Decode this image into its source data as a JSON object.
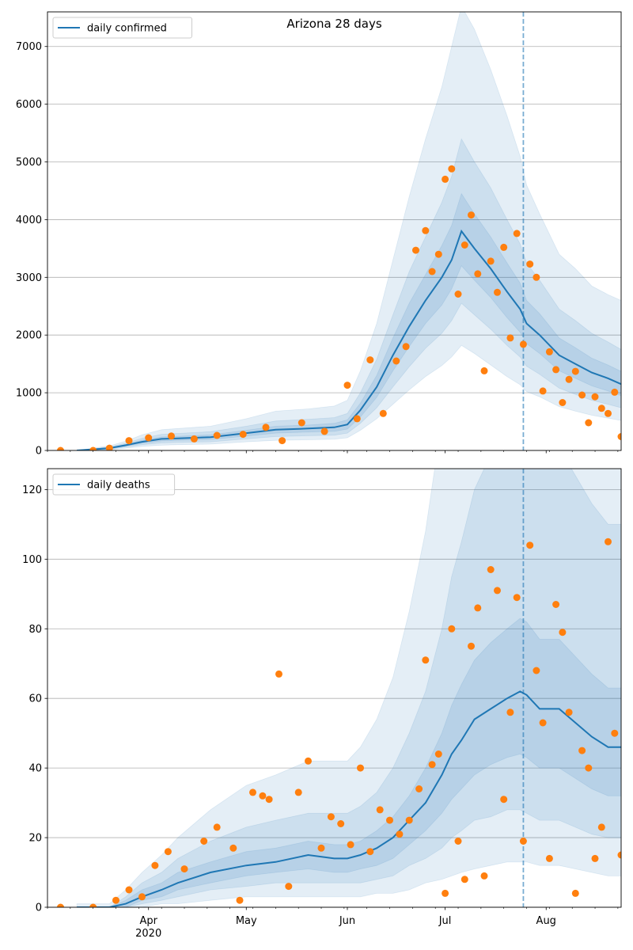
{
  "chart_data": [
    {
      "type": "line",
      "title": "Arizona 28 days",
      "legend": {
        "placement": "top-left",
        "entries": [
          "daily confirmed"
        ]
      },
      "grid": "y",
      "ylim": [
        0,
        7600
      ],
      "yticks": [
        0,
        1000,
        2000,
        3000,
        4000,
        5000,
        6000,
        7000
      ],
      "xlim": [
        "2020-03-01",
        "2020-08-24"
      ],
      "forecast_start": "2020-07-25",
      "x": [
        "2020-03-10",
        "2020-03-20",
        "2020-03-25",
        "2020-03-30",
        "2020-04-05",
        "2020-04-10",
        "2020-04-20",
        "2020-05-01",
        "2020-05-10",
        "2020-05-20",
        "2020-05-28",
        "2020-06-01",
        "2020-06-05",
        "2020-06-10",
        "2020-06-15",
        "2020-06-20",
        "2020-06-25",
        "2020-06-30",
        "2020-07-03",
        "2020-07-06",
        "2020-07-10",
        "2020-07-15",
        "2020-07-20",
        "2020-07-24",
        "2020-07-26",
        "2020-07-30",
        "2020-08-05",
        "2020-08-10",
        "2020-08-15",
        "2020-08-20",
        "2020-08-24"
      ],
      "series": [
        {
          "name": "daily confirmed",
          "kind": "line",
          "color": "#1f77b4",
          "values": [
            0,
            40,
            90,
            150,
            200,
            210,
            230,
            300,
            360,
            380,
            400,
            450,
            700,
            1100,
            1650,
            2150,
            2600,
            3000,
            3300,
            3800,
            3500,
            3150,
            2750,
            2450,
            2200,
            2000,
            1650,
            1500,
            1350,
            1250,
            1150
          ]
        },
        {
          "kind": "band",
          "color": "#1f77b4",
          "level": "inner",
          "lower": [
            0,
            30,
            75,
            125,
            165,
            175,
            190,
            250,
            300,
            320,
            330,
            370,
            580,
            920,
            1380,
            1800,
            2200,
            2520,
            2800,
            3200,
            2950,
            2650,
            2300,
            2050,
            1850,
            1680,
            1380,
            1250,
            1120,
            1030,
            950
          ],
          "upper": [
            0,
            50,
            105,
            175,
            235,
            245,
            270,
            350,
            420,
            440,
            470,
            530,
            820,
            1300,
            1950,
            2550,
            3050,
            3550,
            3900,
            4450,
            4100,
            3700,
            3250,
            2900,
            2600,
            2370,
            1950,
            1780,
            1600,
            1480,
            1370
          ]
        },
        {
          "kind": "band",
          "color": "#1f77b4",
          "level": "middle",
          "lower": [
            0,
            20,
            60,
            100,
            130,
            140,
            150,
            200,
            240,
            255,
            265,
            300,
            470,
            740,
            1100,
            1450,
            1770,
            2030,
            2250,
            2550,
            2350,
            2100,
            1820,
            1620,
            1460,
            1320,
            1080,
            970,
            870,
            800,
            740
          ],
          "upper": [
            0,
            60,
            125,
            210,
            280,
            295,
            325,
            420,
            510,
            540,
            570,
            640,
            1000,
            1580,
            2350,
            3100,
            3700,
            4300,
            4750,
            5400,
            5000,
            4550,
            4000,
            3580,
            3250,
            2950,
            2450,
            2250,
            2030,
            1880,
            1750
          ]
        },
        {
          "kind": "band",
          "color": "#1f77b4",
          "level": "outer",
          "lower": [
            0,
            10,
            40,
            70,
            90,
            100,
            110,
            150,
            175,
            185,
            195,
            220,
            350,
            550,
            800,
            1050,
            1280,
            1470,
            1620,
            1820,
            1680,
            1480,
            1280,
            1140,
            1020,
            930,
            760,
            680,
            610,
            560,
            520
          ],
          "upper": [
            0,
            80,
            160,
            270,
            360,
            380,
            420,
            550,
            680,
            720,
            770,
            870,
            1380,
            2200,
            3300,
            4400,
            5400,
            6300,
            7000,
            7700,
            7300,
            6600,
            5800,
            5100,
            4600,
            4100,
            3400,
            3150,
            2850,
            2700,
            2600
          ]
        },
        {
          "name": "observed",
          "kind": "scatter",
          "color": "#ff7f0e",
          "x": [
            "2020-03-05",
            "2020-03-15",
            "2020-03-20",
            "2020-03-26",
            "2020-04-01",
            "2020-04-08",
            "2020-04-15",
            "2020-04-22",
            "2020-04-30",
            "2020-05-07",
            "2020-05-12",
            "2020-05-18",
            "2020-05-25",
            "2020-06-01",
            "2020-06-04",
            "2020-06-08",
            "2020-06-12",
            "2020-06-16",
            "2020-06-19",
            "2020-06-22",
            "2020-06-25",
            "2020-06-27",
            "2020-06-29",
            "2020-07-01",
            "2020-07-03",
            "2020-07-05",
            "2020-07-07",
            "2020-07-09",
            "2020-07-11",
            "2020-07-13",
            "2020-07-15",
            "2020-07-17",
            "2020-07-19",
            "2020-07-21",
            "2020-07-23",
            "2020-07-25",
            "2020-07-27",
            "2020-07-29",
            "2020-07-31",
            "2020-08-02",
            "2020-08-04",
            "2020-08-06",
            "2020-08-08",
            "2020-08-10",
            "2020-08-12",
            "2020-08-14",
            "2020-08-16",
            "2020-08-18",
            "2020-08-20",
            "2020-08-22",
            "2020-08-24"
          ],
          "y": [
            0,
            0,
            40,
            170,
            220,
            250,
            200,
            260,
            280,
            400,
            170,
            480,
            330,
            1130,
            550,
            1570,
            640,
            1550,
            1800,
            3470,
            3810,
            3100,
            3400,
            4700,
            4880,
            2710,
            3560,
            4080,
            3060,
            1380,
            3280,
            2740,
            3520,
            1950,
            3760,
            1840,
            3230,
            3000,
            1030,
            1710,
            1400,
            830,
            1230,
            1370,
            960,
            480,
            930,
            730,
            640,
            1010,
            240
          ]
        }
      ]
    },
    {
      "type": "line",
      "title": "",
      "legend": {
        "placement": "top-left",
        "entries": [
          "daily deaths"
        ]
      },
      "grid": "y",
      "ylim": [
        0,
        126
      ],
      "yticks": [
        0,
        20,
        40,
        60,
        80,
        100,
        120
      ],
      "xlim": [
        "2020-03-01",
        "2020-08-24"
      ],
      "forecast_start": "2020-07-25",
      "xticks": [
        {
          "date": "2020-04-01",
          "label": "Apr",
          "sublabel": "2020"
        },
        {
          "date": "2020-05-01",
          "label": "May"
        },
        {
          "date": "2020-06-01",
          "label": "Jun"
        },
        {
          "date": "2020-07-01",
          "label": "Jul"
        },
        {
          "date": "2020-08-01",
          "label": "Aug"
        }
      ],
      "x": [
        "2020-03-10",
        "2020-03-20",
        "2020-03-25",
        "2020-03-30",
        "2020-04-05",
        "2020-04-10",
        "2020-04-20",
        "2020-05-01",
        "2020-05-10",
        "2020-05-20",
        "2020-05-28",
        "2020-06-01",
        "2020-06-05",
        "2020-06-10",
        "2020-06-15",
        "2020-06-20",
        "2020-06-25",
        "2020-06-30",
        "2020-07-03",
        "2020-07-06",
        "2020-07-10",
        "2020-07-15",
        "2020-07-20",
        "2020-07-24",
        "2020-07-26",
        "2020-07-30",
        "2020-08-05",
        "2020-08-10",
        "2020-08-15",
        "2020-08-20",
        "2020-08-24"
      ],
      "series": [
        {
          "name": "daily deaths",
          "kind": "line",
          "color": "#1f77b4",
          "values": [
            0,
            0,
            1,
            3,
            5,
            7,
            10,
            12,
            13,
            15,
            14,
            14,
            15,
            17,
            20,
            25,
            30,
            38,
            44,
            48,
            54,
            57,
            60,
            62,
            61,
            57,
            57,
            53,
            49,
            46,
            46
          ]
        },
        {
          "kind": "band",
          "color": "#1f77b4",
          "level": "inner",
          "lower": [
            0,
            0,
            0,
            2,
            3,
            5,
            7,
            9,
            10,
            11,
            10,
            10,
            11,
            12,
            14,
            18,
            22,
            27,
            31,
            34,
            38,
            41,
            43,
            44,
            43,
            40,
            40,
            37,
            34,
            32,
            32
          ],
          "upper": [
            0,
            0,
            2,
            5,
            7,
            10,
            13,
            16,
            17,
            19,
            18,
            18,
            19,
            22,
            26,
            32,
            40,
            50,
            58,
            64,
            71,
            76,
            80,
            83,
            82,
            77,
            77,
            72,
            67,
            63,
            63
          ]
        },
        {
          "kind": "band",
          "color": "#1f77b4",
          "level": "middle",
          "lower": [
            0,
            0,
            0,
            1,
            2,
            3,
            5,
            6,
            7,
            7,
            7,
            7,
            7,
            8,
            9,
            12,
            14,
            17,
            20,
            22,
            25,
            26,
            28,
            28,
            27,
            25,
            25,
            23,
            21,
            20,
            20
          ],
          "upper": [
            0,
            0,
            3,
            7,
            10,
            14,
            19,
            23,
            25,
            27,
            27,
            27,
            29,
            33,
            40,
            50,
            62,
            80,
            95,
            105,
            120,
            130,
            138,
            142,
            140,
            132,
            132,
            124,
            116,
            110,
            110
          ]
        },
        {
          "kind": "band",
          "color": "#1f77b4",
          "level": "outer",
          "lower": [
            0,
            0,
            0,
            0,
            1,
            1,
            2,
            3,
            3,
            3,
            3,
            3,
            3,
            4,
            4,
            5,
            7,
            8,
            9,
            10,
            11,
            12,
            13,
            13,
            13,
            12,
            12,
            11,
            10,
            9,
            9
          ],
          "upper": [
            1,
            1,
            5,
            10,
            15,
            20,
            28,
            35,
            38,
            42,
            42,
            42,
            46,
            54,
            66,
            85,
            108,
            140,
            170,
            190,
            210,
            230,
            240,
            245,
            240,
            225,
            225,
            210,
            195,
            185,
            180
          ]
        },
        {
          "name": "observed",
          "kind": "scatter",
          "color": "#ff7f0e",
          "x": [
            "2020-03-05",
            "2020-03-15",
            "2020-03-22",
            "2020-03-26",
            "2020-03-30",
            "2020-04-03",
            "2020-04-07",
            "2020-04-12",
            "2020-04-18",
            "2020-04-22",
            "2020-04-27",
            "2020-04-29",
            "2020-05-03",
            "2020-05-06",
            "2020-05-08",
            "2020-05-11",
            "2020-05-14",
            "2020-05-17",
            "2020-05-20",
            "2020-05-24",
            "2020-05-27",
            "2020-05-30",
            "2020-06-02",
            "2020-06-05",
            "2020-06-08",
            "2020-06-11",
            "2020-06-14",
            "2020-06-17",
            "2020-06-20",
            "2020-06-23",
            "2020-06-25",
            "2020-06-27",
            "2020-06-29",
            "2020-07-01",
            "2020-07-03",
            "2020-07-05",
            "2020-07-07",
            "2020-07-09",
            "2020-07-11",
            "2020-07-13",
            "2020-07-15",
            "2020-07-17",
            "2020-07-19",
            "2020-07-21",
            "2020-07-23",
            "2020-07-25",
            "2020-07-27",
            "2020-07-29",
            "2020-07-31",
            "2020-08-02",
            "2020-08-04",
            "2020-08-06",
            "2020-08-08",
            "2020-08-10",
            "2020-08-12",
            "2020-08-14",
            "2020-08-16",
            "2020-08-18",
            "2020-08-20",
            "2020-08-22",
            "2020-08-24"
          ],
          "y": [
            0,
            0,
            2,
            5,
            3,
            12,
            16,
            11,
            19,
            23,
            17,
            2,
            33,
            32,
            31,
            67,
            6,
            33,
            42,
            17,
            26,
            24,
            18,
            40,
            16,
            28,
            25,
            21,
            25,
            34,
            71,
            41,
            44,
            4,
            80,
            19,
            8,
            75,
            86,
            9,
            97,
            91,
            31,
            56,
            89,
            19,
            104,
            68,
            53,
            14,
            87,
            79,
            56,
            4,
            45,
            40,
            14,
            23,
            105,
            50,
            15
          ]
        }
      ]
    }
  ]
}
